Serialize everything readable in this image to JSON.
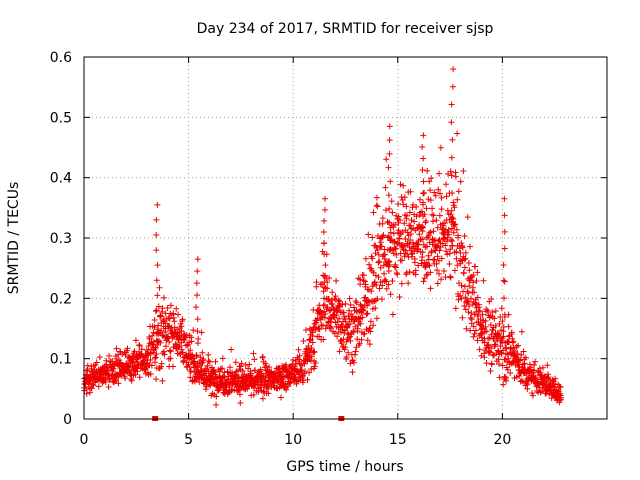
{
  "chart_data": {
    "type": "scatter",
    "title": "Day 234 of 2017, SRMTID for receiver sjsp",
    "xlabel": "GPS time / hours",
    "ylabel": "SRMTID / TECUs",
    "xlim": [
      0,
      25
    ],
    "ylim": [
      0,
      0.6
    ],
    "xticks": [
      "0",
      "5",
      "10",
      "15",
      "20"
    ],
    "yticks": [
      "0",
      "0.1",
      "0.2",
      "0.3",
      "0.4",
      "0.5",
      "0.6"
    ],
    "grid": true,
    "marker": "plus",
    "color": "#ee0000",
    "x_range_of_data": [
      0,
      22.8
    ],
    "baseline_markers_x": [
      3.4,
      12.3
    ],
    "trend_profile": {
      "x": [
        0.0,
        1.0,
        2.0,
        3.0,
        3.5,
        4.0,
        4.5,
        5.0,
        6.0,
        7.0,
        8.0,
        9.0,
        10.0,
        10.5,
        11.0,
        11.5,
        12.0,
        13.0,
        14.0,
        15.0,
        16.0,
        17.0,
        17.7,
        18.0,
        18.5,
        19.0,
        19.5,
        20.0,
        20.5,
        21.0,
        22.0,
        22.8
      ],
      "y": [
        0.06,
        0.075,
        0.09,
        0.095,
        0.13,
        0.15,
        0.14,
        0.1,
        0.065,
        0.065,
        0.06,
        0.065,
        0.075,
        0.08,
        0.13,
        0.2,
        0.17,
        0.14,
        0.25,
        0.3,
        0.3,
        0.29,
        0.32,
        0.26,
        0.2,
        0.15,
        0.13,
        0.12,
        0.11,
        0.08,
        0.06,
        0.04
      ]
    },
    "spread_profile": {
      "x": [
        0.0,
        3.0,
        3.5,
        4.0,
        5.0,
        10.0,
        11.0,
        11.5,
        12.0,
        13.0,
        14.0,
        15.0,
        16.0,
        17.0,
        18.0,
        19.0,
        20.0,
        21.0,
        22.8
      ],
      "y": [
        0.02,
        0.025,
        0.07,
        0.05,
        0.03,
        0.02,
        0.05,
        0.06,
        0.05,
        0.05,
        0.09,
        0.08,
        0.07,
        0.08,
        0.09,
        0.05,
        0.05,
        0.03,
        0.015
      ]
    },
    "peaks": [
      {
        "x": 3.5,
        "y": 0.355
      },
      {
        "x": 5.4,
        "y": 0.265
      },
      {
        "x": 11.5,
        "y": 0.365
      },
      {
        "x": 14.6,
        "y": 0.485
      },
      {
        "x": 16.2,
        "y": 0.47
      },
      {
        "x": 17.6,
        "y": 0.58
      },
      {
        "x": 20.1,
        "y": 0.365
      }
    ]
  }
}
